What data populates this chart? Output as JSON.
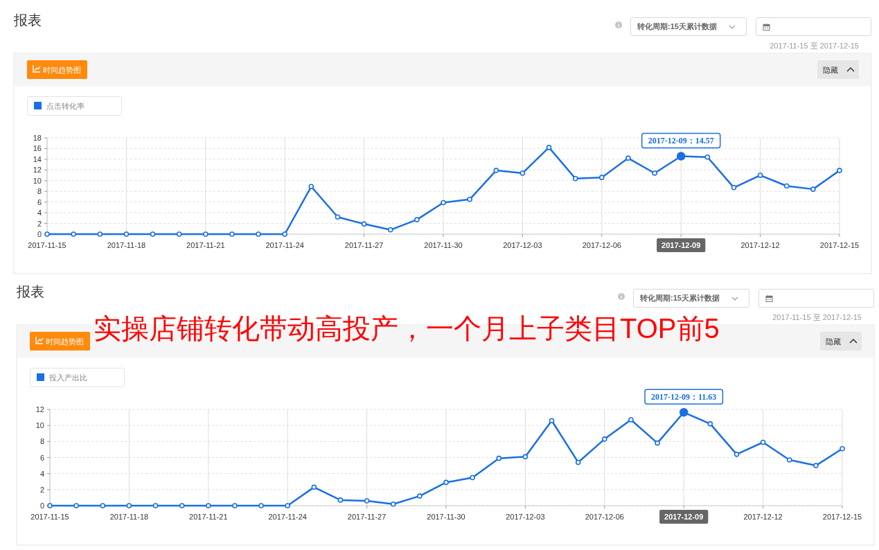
{
  "chart_data": [
    {
      "type": "line",
      "title": "报表",
      "annotations": [
        "转化周期:15天累计数据",
        "2017-11-15 至 2017-12-15",
        "时间趋势图",
        "隐藏",
        {
          "text": "2017-12-09：14.57",
          "x": "2017-12-09",
          "y": 14.57
        }
      ],
      "x": [
        "2017-11-15",
        "2017-11-16",
        "2017-11-17",
        "2017-11-18",
        "2017-11-19",
        "2017-11-20",
        "2017-11-21",
        "2017-11-22",
        "2017-11-23",
        "2017-11-24",
        "2017-11-25",
        "2017-11-26",
        "2017-11-27",
        "2017-11-28",
        "2017-11-29",
        "2017-11-30",
        "2017-12-01",
        "2017-12-02",
        "2017-12-03",
        "2017-12-04",
        "2017-12-05",
        "2017-12-06",
        "2017-12-07",
        "2017-12-08",
        "2017-12-09",
        "2017-12-10",
        "2017-12-11",
        "2017-12-12",
        "2017-12-13",
        "2017-12-14",
        "2017-12-15"
      ],
      "series": [
        {
          "name": "点击转化率",
          "color": "#1a6fe3",
          "values": [
            0,
            0,
            0,
            0,
            0,
            0,
            0,
            0,
            0,
            0,
            8.9,
            3.2,
            1.9,
            0.8,
            2.7,
            5.9,
            6.5,
            11.9,
            11.4,
            16.2,
            10.4,
            10.6,
            14.2,
            11.4,
            14.57,
            14.4,
            8.7,
            11.0,
            9.0,
            8.4,
            11.9
          ]
        }
      ],
      "xlim": [
        "2017-11-15",
        "2017-12-15"
      ],
      "xticks": [
        "2017-11-15",
        "2017-11-18",
        "2017-11-21",
        "2017-11-24",
        "2017-11-27",
        "2017-11-30",
        "2017-12-03",
        "2017-12-06",
        "2017-12-09",
        "2017-12-12",
        "2017-12-15"
      ],
      "ylim": [
        0,
        18
      ],
      "yticks": [
        0,
        2,
        4,
        6,
        8,
        10,
        12,
        14,
        16,
        18
      ],
      "grid": true,
      "legend": "top left",
      "marker": "circle",
      "line_style": "solid"
    },
    {
      "type": "line",
      "title": "报表",
      "subtitle": "实操店铺转化带动高投产，一个月上子类目TOP前5",
      "annotations": [
        "转化周期:15天累计数据",
        "2017-11-15 至 2017-12-15",
        "时间趋势图",
        "隐藏",
        {
          "text": "2017-12-09：11.63",
          "x": "2017-12-09",
          "y": 11.63
        }
      ],
      "x": [
        "2017-11-15",
        "2017-11-16",
        "2017-11-17",
        "2017-11-18",
        "2017-11-19",
        "2017-11-20",
        "2017-11-21",
        "2017-11-22",
        "2017-11-23",
        "2017-11-24",
        "2017-11-25",
        "2017-11-26",
        "2017-11-27",
        "2017-11-28",
        "2017-11-29",
        "2017-11-30",
        "2017-12-01",
        "2017-12-02",
        "2017-12-03",
        "2017-12-04",
        "2017-12-05",
        "2017-12-06",
        "2017-12-07",
        "2017-12-08",
        "2017-12-09",
        "2017-12-10",
        "2017-12-11",
        "2017-12-12",
        "2017-12-13",
        "2017-12-14",
        "2017-12-15"
      ],
      "series": [
        {
          "name": "投入产出比",
          "color": "#1a6fe3",
          "values": [
            0,
            0,
            0,
            0,
            0,
            0,
            0,
            0,
            0,
            0,
            2.3,
            0.7,
            0.6,
            0.2,
            1.2,
            2.9,
            3.5,
            5.9,
            6.1,
            10.6,
            5.4,
            8.3,
            10.7,
            7.8,
            11.63,
            10.2,
            6.4,
            7.9,
            5.7,
            5.0,
            7.1
          ]
        }
      ],
      "xlim": [
        "2017-11-15",
        "2017-12-15"
      ],
      "xticks": [
        "2017-11-15",
        "2017-11-18",
        "2017-11-21",
        "2017-11-24",
        "2017-11-27",
        "2017-11-30",
        "2017-12-03",
        "2017-12-06",
        "2017-12-09",
        "2017-12-12",
        "2017-12-15"
      ],
      "ylim": [
        0,
        12
      ],
      "yticks": [
        0,
        2,
        4,
        6,
        8,
        10,
        12
      ],
      "grid": true,
      "legend": "top left",
      "marker": "circle",
      "line_style": "solid"
    }
  ]
}
